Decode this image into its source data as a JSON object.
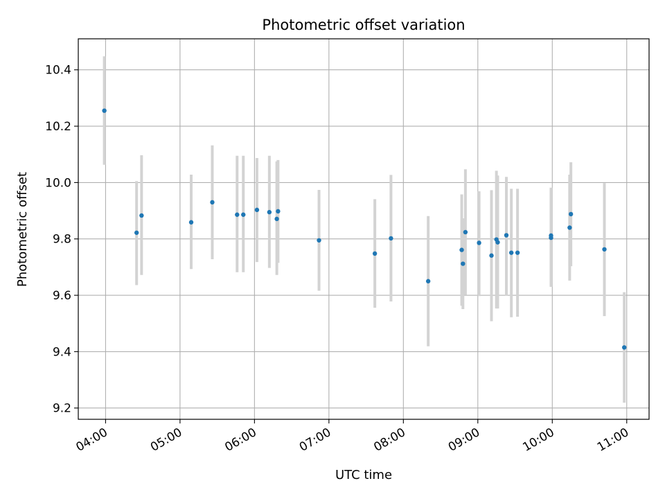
{
  "chart_data": {
    "type": "scatter",
    "title": "Photometric offset variation",
    "xlabel": "UTC time",
    "ylabel": "Photometric offset",
    "xlim": [
      "03:38",
      "11:18"
    ],
    "ylim": [
      9.16,
      10.51
    ],
    "grid": true,
    "x_ticks": [
      "04:00",
      "05:00",
      "06:00",
      "07:00",
      "08:00",
      "09:00",
      "10:00",
      "11:00"
    ],
    "y_ticks": [
      "9.2",
      "9.4",
      "9.6",
      "9.8",
      "10.0",
      "10.2",
      "10.4"
    ],
    "colors": {
      "point": "#1f77b4",
      "errorbar": "#d3d3d3",
      "grid": "#b0b0b0"
    },
    "points": [
      {
        "x": "03:59",
        "y": 10.255,
        "err_lo": 10.063,
        "err_hi": 10.448
      },
      {
        "x": "04:25",
        "y": 9.822,
        "err_lo": 9.636,
        "err_hi": 10.005
      },
      {
        "x": "04:29",
        "y": 9.883,
        "err_lo": 9.672,
        "err_hi": 10.097
      },
      {
        "x": "05:09",
        "y": 9.859,
        "err_lo": 9.693,
        "err_hi": 10.028
      },
      {
        "x": "05:26",
        "y": 9.93,
        "err_lo": 9.728,
        "err_hi": 10.132
      },
      {
        "x": "05:46",
        "y": 9.886,
        "err_lo": 9.682,
        "err_hi": 10.095
      },
      {
        "x": "05:51",
        "y": 9.886,
        "err_lo": 9.682,
        "err_hi": 10.095
      },
      {
        "x": "06:02",
        "y": 9.903,
        "err_lo": 9.718,
        "err_hi": 10.087
      },
      {
        "x": "06:12",
        "y": 9.895,
        "err_lo": 9.697,
        "err_hi": 10.095
      },
      {
        "x": "06:18",
        "y": 9.871,
        "err_lo": 9.672,
        "err_hi": 10.075
      },
      {
        "x": "06:19",
        "y": 9.898,
        "err_lo": 9.715,
        "err_hi": 10.08
      },
      {
        "x": "06:52",
        "y": 9.795,
        "err_lo": 9.616,
        "err_hi": 9.974
      },
      {
        "x": "07:37",
        "y": 9.748,
        "err_lo": 9.556,
        "err_hi": 9.941
      },
      {
        "x": "07:50",
        "y": 9.802,
        "err_lo": 9.578,
        "err_hi": 10.027
      },
      {
        "x": "08:20",
        "y": 9.65,
        "err_lo": 9.419,
        "err_hi": 9.881
      },
      {
        "x": "08:47",
        "y": 9.761,
        "err_lo": 9.563,
        "err_hi": 9.958
      },
      {
        "x": "08:48",
        "y": 9.712,
        "err_lo": 9.551,
        "err_hi": 9.873
      },
      {
        "x": "08:50",
        "y": 9.824,
        "err_lo": 9.602,
        "err_hi": 10.047
      },
      {
        "x": "09:01",
        "y": 9.786,
        "err_lo": 9.597,
        "err_hi": 9.969
      },
      {
        "x": "09:11",
        "y": 9.741,
        "err_lo": 9.508,
        "err_hi": 9.973
      },
      {
        "x": "09:15",
        "y": 9.798,
        "err_lo": 9.553,
        "err_hi": 10.042
      },
      {
        "x": "09:16",
        "y": 9.788,
        "err_lo": 9.553,
        "err_hi": 10.025
      },
      {
        "x": "09:23",
        "y": 9.813,
        "err_lo": 9.598,
        "err_hi": 10.02
      },
      {
        "x": "09:27",
        "y": 9.751,
        "err_lo": 9.522,
        "err_hi": 9.978
      },
      {
        "x": "09:32",
        "y": 9.751,
        "err_lo": 9.524,
        "err_hi": 9.978
      },
      {
        "x": "09:59",
        "y": 9.804,
        "err_lo": 9.63,
        "err_hi": 9.978
      },
      {
        "x": "09:59",
        "y": 9.812,
        "err_lo": 9.642,
        "err_hi": 9.982
      },
      {
        "x": "10:14",
        "y": 9.84,
        "err_lo": 9.652,
        "err_hi": 10.028
      },
      {
        "x": "10:15",
        "y": 9.888,
        "err_lo": 9.703,
        "err_hi": 10.072
      },
      {
        "x": "10:42",
        "y": 9.763,
        "err_lo": 9.526,
        "err_hi": 9.998
      },
      {
        "x": "10:58",
        "y": 9.415,
        "err_lo": 9.219,
        "err_hi": 9.611
      }
    ]
  }
}
